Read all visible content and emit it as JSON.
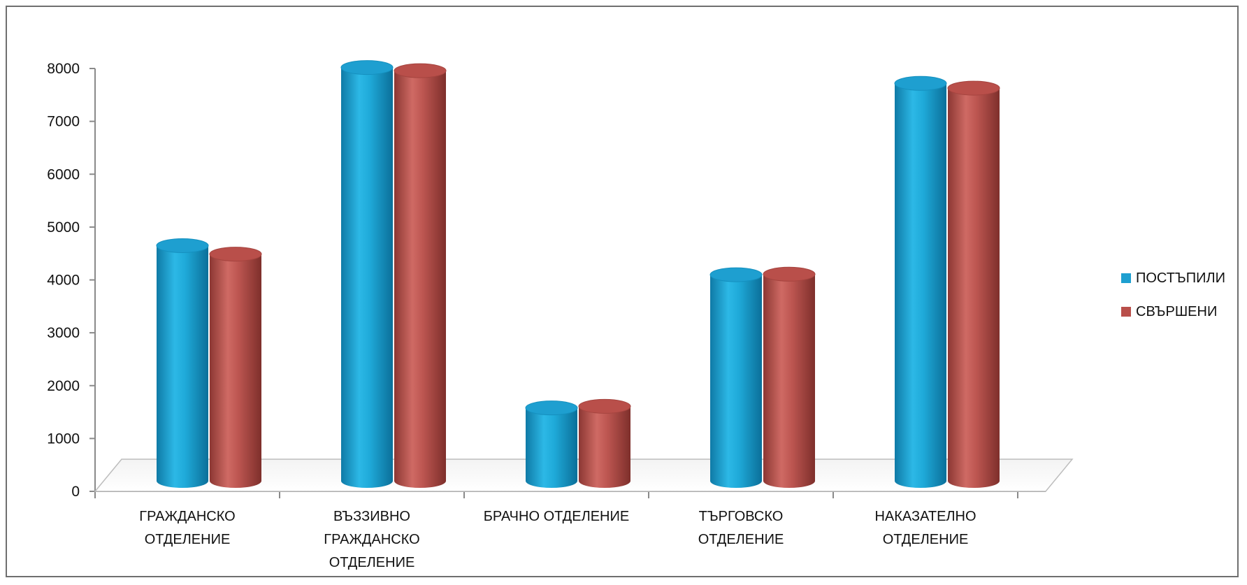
{
  "chart_data": {
    "type": "bar",
    "title": "",
    "xlabel": "",
    "ylabel": "",
    "ylim": [
      0,
      8000
    ],
    "y_ticks": [
      "0",
      "1000",
      "2000",
      "3000",
      "4000",
      "5000",
      "6000",
      "7000",
      "8000"
    ],
    "categories": [
      [
        "ГРАЖДАНСКО",
        "ОТДЕЛЕНИЕ"
      ],
      [
        "ВЪЗЗИВНО",
        "ГРАЖДАНСКО",
        "ОТДЕЛЕНИЕ"
      ],
      [
        "БРАЧНО ОТДЕЛЕНИЕ"
      ],
      [
        "ТЪРГОВСКО",
        "ОТДЕЛЕНИЕ"
      ],
      [
        "НАКАЗАТЕЛНО",
        "ОТДЕЛЕНИЕ"
      ]
    ],
    "series": [
      {
        "name": "ПОСТЪПИЛИ",
        "color": "#1e9fd0",
        "values": [
          4450,
          7820,
          1380,
          3900,
          7520
        ]
      },
      {
        "name": "СВЪРШЕНИ",
        "color": "#b94f4a",
        "values": [
          4290,
          7760,
          1410,
          3910,
          7430
        ]
      }
    ],
    "legend_position": "right",
    "grid": false,
    "style": "3d-cylinder"
  }
}
